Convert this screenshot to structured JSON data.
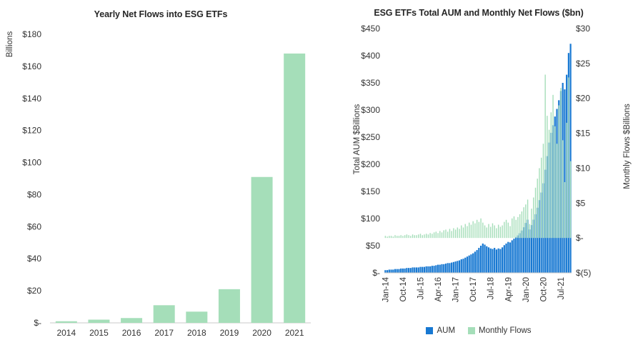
{
  "chart_data": [
    {
      "type": "bar",
      "title": "Yearly Net Flows into ESG ETFs",
      "ylabel": "Billions",
      "categories": [
        "2014",
        "2015",
        "2016",
        "2017",
        "2018",
        "2019",
        "2020",
        "2021"
      ],
      "values": [
        1,
        2,
        3,
        11,
        7,
        21,
        91,
        168
      ],
      "ylim": [
        0,
        180
      ],
      "ytick_step": 20,
      "ytick_labels": [
        "$-",
        "$20",
        "$40",
        "$60",
        "$80",
        "$100",
        "$120",
        "$140",
        "$160",
        "$180"
      ],
      "bar_color": "#a5deb9",
      "grid": false,
      "legend_position": "none"
    },
    {
      "type": "combo",
      "title": "ESG ETFs Total AUM and Monthly Net Flows ($bn)",
      "left_axis_label": "Total AUM $Billions",
      "right_axis_label": "Monthly Flows $Billions",
      "left_ylim": [
        0,
        450
      ],
      "left_tick_step": 50,
      "left_tick_labels": [
        "$-",
        "$50",
        "$100",
        "$150",
        "$200",
        "$250",
        "$300",
        "$350",
        "$400",
        "$450"
      ],
      "right_ylim": [
        -5,
        30
      ],
      "right_tick_step": 5,
      "right_tick_labels": [
        "$(5)",
        "$-",
        "$5",
        "$10",
        "$15",
        "$20",
        "$25",
        "$30"
      ],
      "n_points": 96,
      "x_tick_labels": [
        "Jan-14",
        "Oct-14",
        "Jul-15",
        "Apr-16",
        "Jan-17",
        "Oct-17",
        "Jul-18",
        "Apr-19",
        "Jan-20",
        "Oct-20",
        "Jul-21"
      ],
      "x_tick_positions": [
        0,
        9,
        18,
        27,
        36,
        45,
        54,
        63,
        72,
        81,
        90
      ],
      "grid": false,
      "legend_position": "bottom",
      "series": [
        {
          "name": "AUM",
          "plot_as": "bar-area",
          "axis": "left",
          "color": "#1778d2",
          "values": [
            5,
            5,
            6,
            6,
            6,
            7,
            7,
            7,
            8,
            8,
            8,
            9,
            9,
            9,
            10,
            10,
            10,
            10,
            11,
            11,
            11,
            12,
            12,
            12,
            13,
            13,
            14,
            15,
            15,
            16,
            16,
            17,
            18,
            18,
            19,
            20,
            21,
            22,
            23,
            25,
            26,
            28,
            30,
            32,
            34,
            36,
            39,
            42,
            46,
            50,
            54,
            52,
            49,
            47,
            45,
            44,
            46,
            43,
            45,
            44,
            47,
            51,
            54,
            57,
            56,
            60,
            63,
            66,
            69,
            73,
            78,
            84,
            92,
            98,
            80,
            88,
            98,
            108,
            120,
            134,
            148,
            165,
            190,
            215,
            240,
            258,
            272,
            288,
            302,
            318,
            335,
            350,
            338,
            365,
            405,
            422
          ]
        },
        {
          "name": "Monthly Flows",
          "plot_as": "bar",
          "axis": "right",
          "color": "#a5deb9",
          "values": [
            0.3,
            0.2,
            0.3,
            0.3,
            0.2,
            0.4,
            0.3,
            0.3,
            0.4,
            0.3,
            0.4,
            0.5,
            0.4,
            0.3,
            0.5,
            0.4,
            0.4,
            0.5,
            0.6,
            0.4,
            0.5,
            0.6,
            0.5,
            0.7,
            0.6,
            0.8,
            0.9,
            0.7,
            1.0,
            0.8,
            1.1,
            1.2,
            0.9,
            1.3,
            1.0,
            1.4,
            1.2,
            1.5,
            1.3,
            1.8,
            1.5,
            2.0,
            1.7,
            2.2,
            1.9,
            2.4,
            2.1,
            2.6,
            2.3,
            2.8,
            2.2,
            1.8,
            1.5,
            2.0,
            1.6,
            2.1,
            1.8,
            1.4,
            1.9,
            1.6,
            1.8,
            2.3,
            2.6,
            2.2,
            1.7,
            2.8,
            3.1,
            2.6,
            3.0,
            3.4,
            3.8,
            4.4,
            4.8,
            5.5,
            2.0,
            4.2,
            5.8,
            7.2,
            8.5,
            10.0,
            11.5,
            13.5,
            23.4,
            17.5,
            15.5,
            18.0,
            20.5,
            16.0,
            13.5,
            19.0,
            21.5,
            14.0,
            8.0,
            16.5,
            23.0,
            11.0
          ]
        }
      ],
      "legend": [
        {
          "label": "AUM",
          "color": "#1778d2"
        },
        {
          "label": "Monthly Flows",
          "color": "#a5deb9"
        }
      ]
    }
  ],
  "style": {
    "axis_line_color": "#c9c9c9",
    "text_color": "#333333"
  }
}
